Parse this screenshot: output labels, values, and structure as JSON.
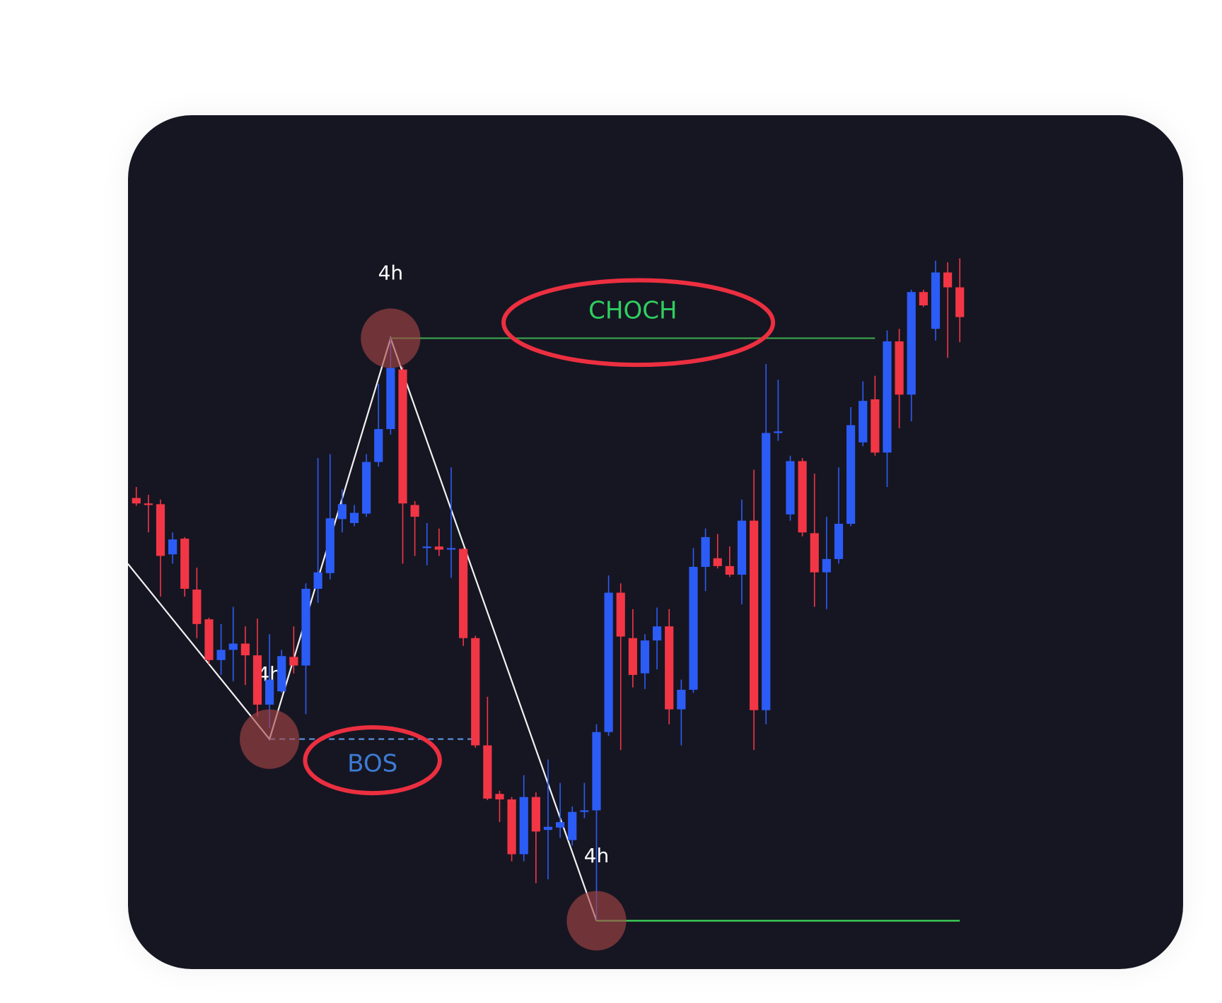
{
  "chart_data": {
    "type": "candlestick",
    "open": [
      604,
      597,
      596,
      532,
      552,
      487,
      449,
      397,
      410,
      418,
      403,
      340,
      357,
      401,
      390,
      488,
      508,
      577,
      572,
      584,
      650,
      692,
      768,
      595,
      540,
      542,
      538,
      539,
      425,
      288,
      226,
      219,
      149,
      222,
      180,
      183,
      167,
      203,
      205,
      305,
      483,
      425,
      380,
      422,
      440,
      334,
      359,
      516,
      527,
      517,
      506,
      575,
      333,
      687,
      583,
      651,
      559,
      509,
      526,
      571,
      675,
      730,
      662,
      804,
      736,
      867,
      820,
      892,
      873
    ],
    "high": [
      618,
      608,
      602,
      560,
      554,
      515,
      451,
      443,
      465,
      440,
      450,
      430,
      410,
      440,
      495,
      655,
      660,
      615,
      595,
      660,
      750,
      808,
      772,
      600,
      572,
      565,
      643,
      540,
      428,
      350,
      230,
      222,
      250,
      228,
      270,
      240,
      210,
      240,
      315,
      505,
      495,
      462,
      430,
      464,
      462,
      372,
      540,
      565,
      558,
      542,
      602,
      640,
      775,
      755,
      658,
      655,
      635,
      580,
      643,
      720,
      753,
      760,
      818,
      820,
      870,
      870,
      907,
      905,
      910
    ],
    "low": [
      594,
      560,
      478,
      520,
      478,
      425,
      392,
      378,
      370,
      365,
      325,
      310,
      355,
      380,
      328,
      470,
      500,
      560,
      568,
      580,
      644,
      685,
      520,
      530,
      518,
      530,
      502,
      415,
      285,
      218,
      190,
      140,
      140,
      112,
      117,
      170,
      160,
      195,
      65,
      300,
      282,
      362,
      360,
      385,
      315,
      288,
      355,
      485,
      514,
      503,
      468,
      282,
      315,
      677,
      575,
      555,
      465,
      462,
      520,
      568,
      670,
      658,
      618,
      693,
      702,
      848,
      805,
      783,
      803
    ],
    "close": [
      597,
      595,
      530,
      551,
      488,
      443,
      397,
      410,
      418,
      403,
      340,
      372,
      402,
      390,
      488,
      509,
      578,
      596,
      585,
      650,
      692,
      770,
      597,
      580,
      542,
      538,
      540,
      425,
      288,
      220,
      219,
      149,
      222,
      178,
      184,
      190,
      203,
      205,
      305,
      483,
      427,
      378,
      422,
      440,
      334,
      359,
      516,
      554,
      517,
      506,
      575,
      333,
      687,
      689,
      651,
      560,
      509,
      526,
      571,
      697,
      728,
      662,
      804,
      736,
      867,
      850,
      892,
      873,
      835
    ],
    "up_color": "#2c5cf6",
    "down_color": "#f23645",
    "ylim": [
      0,
      1100
    ],
    "zigzag": {
      "x": [
        -0.7,
        11,
        21,
        38
      ],
      "values": [
        520,
        296,
        808,
        64
      ],
      "color": "#f2f2f2"
    },
    "levels": [
      {
        "label": "BOS",
        "value": 296,
        "from": 11,
        "to": 28,
        "color": "#5b8fd6",
        "dashed": true,
        "label_color": "#3d7bd4",
        "label_side": "below"
      },
      {
        "label": "CHOCH",
        "value": 808,
        "from": 21,
        "to": 61,
        "color": "#3a9e4a",
        "dashed": false,
        "label_color": "#2fcf5f",
        "label_side": "above"
      },
      {
        "value": 64,
        "from": 38,
        "to": 68,
        "color": "#3ddc5a",
        "dashed": false
      }
    ],
    "swings": [
      {
        "label": "4h",
        "index": 11,
        "value": 296
      },
      {
        "label": "4h",
        "index": 21,
        "value": 808
      },
      {
        "label": "4h",
        "index": 38,
        "value": 64
      }
    ]
  }
}
